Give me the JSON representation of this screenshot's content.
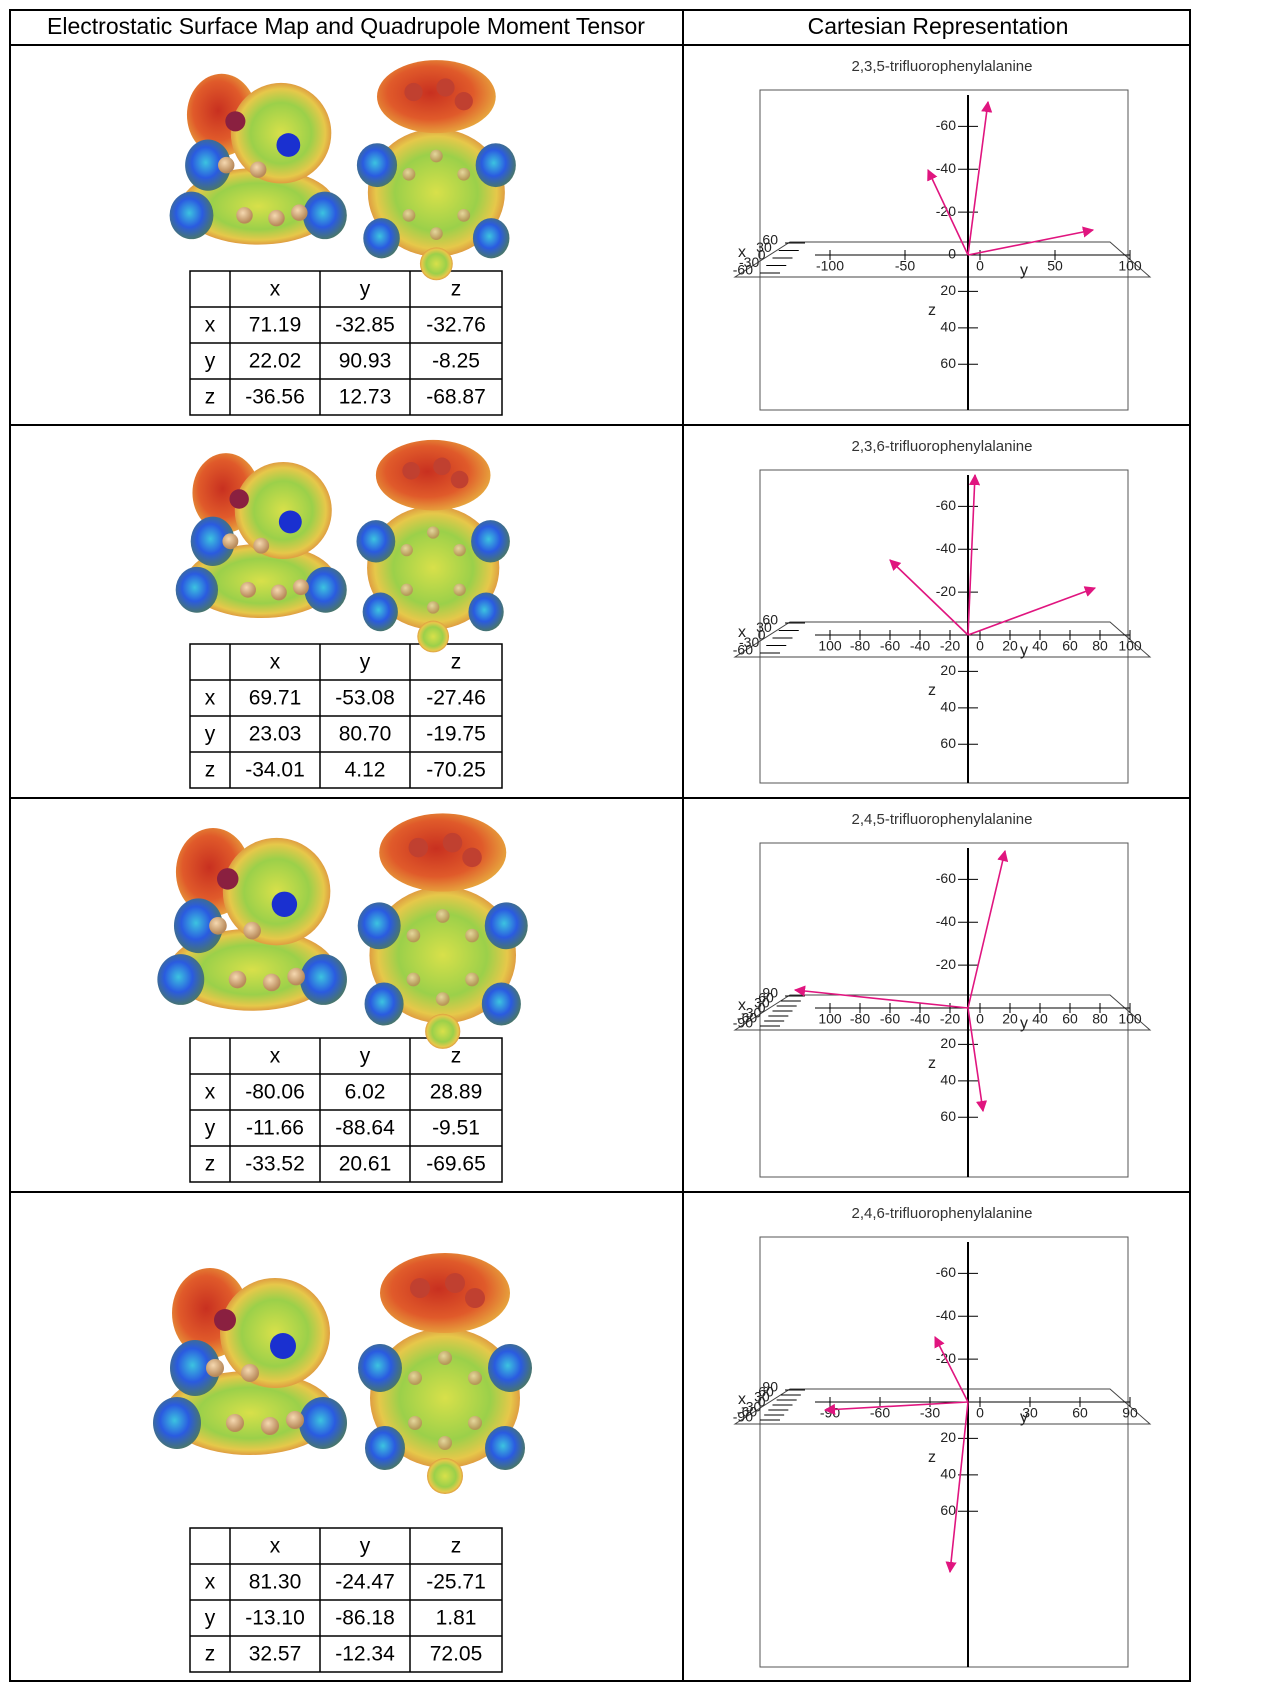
{
  "header": {
    "left": "Electrostatic Surface Map and Quadrupole Moment Tensor",
    "right": "Cartesian Representation"
  },
  "rows": [
    {
      "tensor": {
        "columns": [
          "x",
          "y",
          "z"
        ],
        "rows": [
          {
            "label": "x",
            "values": [
              "71.19",
              "-32.85",
              "-32.76"
            ]
          },
          {
            "label": "y",
            "values": [
              "22.02",
              "90.93",
              "-8.25"
            ]
          },
          {
            "label": "z",
            "values": [
              "-36.56",
              "12.73",
              "-68.87"
            ]
          }
        ]
      },
      "plot": {
        "title": "2,3,5-trifluorophenylalanine",
        "vertical_ticks": [
          "-60",
          "-40",
          "-20",
          "0"
        ],
        "z_label": "z",
        "z_ticks": [
          "20",
          "40",
          "60"
        ],
        "horizontal_ticks": [
          "-100",
          "-50",
          "0",
          "50",
          "100"
        ],
        "y_label": "y",
        "x_label": "x",
        "x_ticks": [
          "60",
          "30",
          "0",
          "-30",
          "-60"
        ]
      }
    },
    {
      "tensor": {
        "columns": [
          "x",
          "y",
          "z"
        ],
        "rows": [
          {
            "label": "x",
            "values": [
              "69.71",
              "-53.08",
              "-27.46"
            ]
          },
          {
            "label": "y",
            "values": [
              "23.03",
              "80.70",
              "-19.75"
            ]
          },
          {
            "label": "z",
            "values": [
              "-34.01",
              "4.12",
              "-70.25"
            ]
          }
        ]
      },
      "plot": {
        "title": "2,3,6-trifluorophenylalanine",
        "vertical_ticks": [
          "-60",
          "-40",
          "-20"
        ],
        "z_label": "z",
        "z_ticks": [
          "20",
          "40",
          "60"
        ],
        "horizontal_ticks": [
          "100",
          "-80",
          "-60",
          "-40",
          "-20",
          "0",
          "20",
          "40",
          "60",
          "80",
          "100"
        ],
        "y_label": "y",
        "x_label": "x",
        "x_ticks": [
          "60",
          "30",
          "0",
          "-30",
          "-60"
        ]
      }
    },
    {
      "tensor": {
        "columns": [
          "x",
          "y",
          "z"
        ],
        "rows": [
          {
            "label": "x",
            "values": [
              "-80.06",
              "6.02",
              "28.89"
            ]
          },
          {
            "label": "y",
            "values": [
              "-11.66",
              "-88.64",
              "-9.51"
            ]
          },
          {
            "label": "z",
            "values": [
              "-33.52",
              "20.61",
              "-69.65"
            ]
          }
        ]
      },
      "plot": {
        "title": "2,4,5-trifluorophenylalanine",
        "vertical_ticks": [
          "-60",
          "-40",
          "-20"
        ],
        "z_label": "z",
        "z_ticks": [
          "20",
          "40",
          "60"
        ],
        "horizontal_ticks": [
          "100",
          "-80",
          "-60",
          "-40",
          "-20",
          "0",
          "20",
          "40",
          "60",
          "80",
          "100"
        ],
        "y_label": "y",
        "x_label": "x",
        "x_ticks": [
          "90",
          "60",
          "30",
          "0",
          "-30",
          "-60",
          "-90"
        ]
      }
    },
    {
      "tensor": {
        "columns": [
          "x",
          "y",
          "z"
        ],
        "rows": [
          {
            "label": "x",
            "values": [
              "81.30",
              "-24.47",
              "-25.71"
            ]
          },
          {
            "label": "y",
            "values": [
              "-13.10",
              "-86.18",
              "1.81"
            ]
          },
          {
            "label": "z",
            "values": [
              "32.57",
              "-12.34",
              "72.05"
            ]
          }
        ]
      },
      "plot": {
        "title": "2,4,6-trifluorophenylalanine",
        "vertical_ticks": [
          "-60",
          "-40",
          "-20"
        ],
        "z_label": "z",
        "z_ticks": [
          "20",
          "40",
          "60"
        ],
        "horizontal_ticks": [
          "-90",
          "-60",
          "-30",
          "0",
          "30",
          "60",
          "90"
        ],
        "y_label": "y",
        "x_label": "x",
        "x_ticks": [
          "90",
          "60",
          "30",
          "0",
          "-30",
          "-60",
          "-90"
        ]
      }
    }
  ]
}
